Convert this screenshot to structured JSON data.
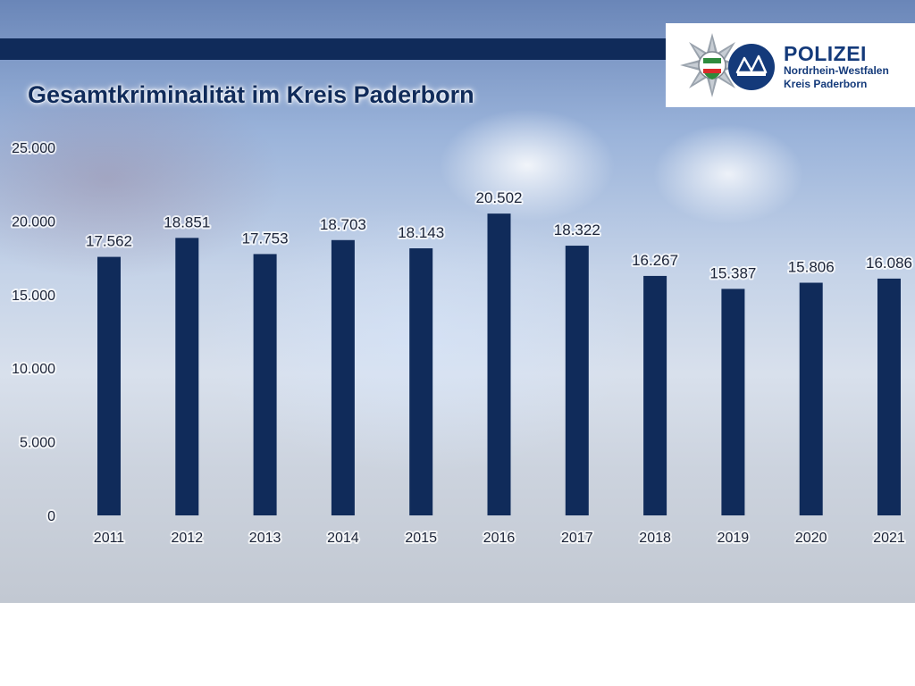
{
  "branding": {
    "org": "POLIZEI",
    "region": "Nordrhein-Westfalen",
    "district": "Kreis Paderborn"
  },
  "colors": {
    "bar": "#102b5a",
    "band": "#102b5a",
    "logo_text": "#143a7a"
  },
  "chart_data": {
    "type": "bar",
    "title": "Gesamtkriminalität im Kreis Paderborn",
    "xlabel": "",
    "ylabel": "",
    "categories": [
      "2011",
      "2012",
      "2013",
      "2014",
      "2015",
      "2016",
      "2017",
      "2018",
      "2019",
      "2020",
      "2021"
    ],
    "values": [
      17562,
      18851,
      17753,
      18703,
      18143,
      20502,
      18322,
      16267,
      15387,
      15806,
      16086
    ],
    "value_labels": [
      "17.562",
      "18.851",
      "17.753",
      "18.703",
      "18.143",
      "20.502",
      "18.322",
      "16.267",
      "15.387",
      "15.806",
      "16.086"
    ],
    "ylim": [
      0,
      25000
    ],
    "y_ticks": [
      0,
      5000,
      10000,
      15000,
      20000,
      25000
    ],
    "y_tick_labels": [
      "0",
      "5.000",
      "10.000",
      "15.000",
      "20.000",
      "25.000"
    ],
    "grid": false,
    "legend": "none"
  }
}
